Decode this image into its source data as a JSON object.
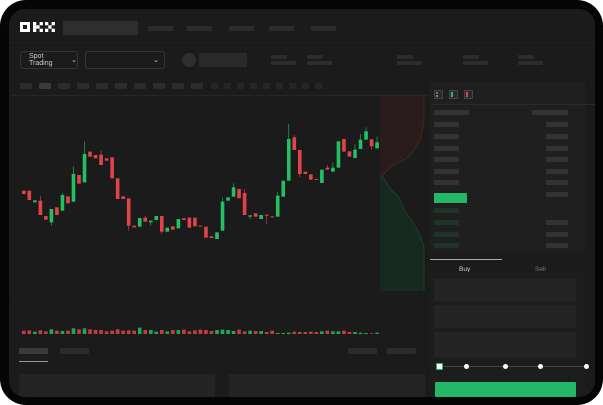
{
  "header": {
    "logo": "OKX",
    "mode_selector": "Spot Trading",
    "mode_chevron": "⌄",
    "pair_chevron": "⌄"
  },
  "trade_panel": {
    "tabs": [
      {
        "label": "Buy",
        "active": true
      },
      {
        "label": "Sell",
        "active": false
      }
    ],
    "leverage_slider_value": 0
  },
  "colors": {
    "up": "#22c063",
    "down": "#e0444a",
    "background": "#1b1b1b",
    "accent": "#22b865"
  },
  "chart_data": {
    "type": "candlestick",
    "candles_ohlc": [
      [
        185,
        185,
        175,
        175
      ],
      [
        185,
        185,
        157,
        157
      ],
      [
        150,
        156,
        150,
        156
      ],
      [
        155,
        170,
        112,
        112
      ],
      [
        109,
        109,
        98,
        98
      ],
      [
        90,
        130,
        80,
        130
      ],
      [
        135,
        135,
        112,
        112
      ],
      [
        125,
        178,
        125,
        172
      ],
      [
        168,
        168,
        147,
        147
      ],
      [
        152,
        258,
        152,
        235
      ],
      [
        232,
        232,
        206,
        206
      ],
      [
        210,
        332,
        210,
        295
      ],
      [
        302,
        302,
        287,
        287
      ],
      [
        292,
        292,
        282,
        282
      ],
      [
        293,
        305,
        262,
        262
      ],
      [
        282,
        282,
        275,
        275
      ],
      [
        285,
        285,
        222,
        222
      ],
      [
        222,
        222,
        160,
        160
      ],
      [
        168,
        168,
        160,
        160
      ],
      [
        162,
        162,
        65,
        80
      ],
      [
        80,
        80,
        75,
        75
      ],
      [
        77,
        103,
        77,
        103
      ],
      [
        104,
        110,
        92,
        92
      ],
      [
        90,
        95,
        80,
        95
      ],
      [
        97,
        109,
        97,
        109
      ],
      [
        109,
        109,
        55,
        62
      ],
      [
        62,
        74,
        62,
        74
      ],
      [
        78,
        78,
        68,
        68
      ],
      [
        72,
        100,
        72,
        100
      ],
      [
        102,
        102,
        97,
        97
      ],
      [
        104,
        104,
        74,
        74
      ],
      [
        104,
        104,
        78,
        78
      ],
      [
        80,
        80,
        78,
        78
      ],
      [
        77,
        77,
        44,
        44
      ],
      [
        48,
        48,
        43,
        43
      ],
      [
        40,
        60,
        40,
        60
      ],
      [
        65,
        164,
        65,
        152
      ],
      [
        155,
        165,
        155,
        165
      ],
      [
        167,
        207,
        167,
        195
      ],
      [
        190,
        190,
        162,
        162
      ],
      [
        178,
        190,
        112,
        112
      ],
      [
        107,
        111,
        100,
        111
      ],
      [
        117,
        117,
        107,
        107
      ],
      [
        100,
        112,
        100,
        112
      ],
      [
        113,
        113,
        85,
        110
      ],
      [
        108,
        108,
        105,
        105
      ],
      [
        107,
        182,
        107,
        170
      ],
      [
        167,
        215,
        167,
        215
      ],
      [
        215,
        385,
        215,
        340
      ],
      [
        345,
        352,
        307,
        307
      ],
      [
        307,
        307,
        225,
        235
      ],
      [
        242,
        242,
        235,
        235
      ],
      [
        234,
        234,
        218,
        218
      ],
      [
        220,
        220,
        217,
        217
      ],
      [
        208,
        248,
        208,
        248
      ],
      [
        254,
        262,
        248,
        248
      ],
      [
        242,
        270,
        242,
        254
      ],
      [
        254,
        333,
        254,
        333
      ],
      [
        340,
        340,
        302,
        302
      ],
      [
        303,
        303,
        287,
        287
      ],
      [
        283,
        325,
        283,
        308
      ],
      [
        310,
        355,
        310,
        338
      ],
      [
        338,
        375,
        338,
        363
      ],
      [
        339,
        339,
        308,
        318
      ],
      [
        312,
        348,
        312,
        330
      ]
    ],
    "volumes": [
      10,
      11,
      7,
      11,
      8,
      14,
      10,
      9,
      10,
      17,
      14,
      17,
      14,
      12,
      12,
      8,
      10,
      14,
      10,
      11,
      10,
      19,
      12,
      12,
      7,
      12,
      8,
      12,
      12,
      13,
      8,
      11,
      13,
      12,
      9,
      12,
      13,
      12,
      9,
      13,
      8,
      10,
      9,
      9,
      6,
      10,
      3,
      3,
      4,
      7,
      6,
      6,
      7,
      6,
      8,
      10,
      8,
      8,
      10,
      6,
      6,
      4,
      3,
      2,
      4
    ],
    "grid": true
  }
}
